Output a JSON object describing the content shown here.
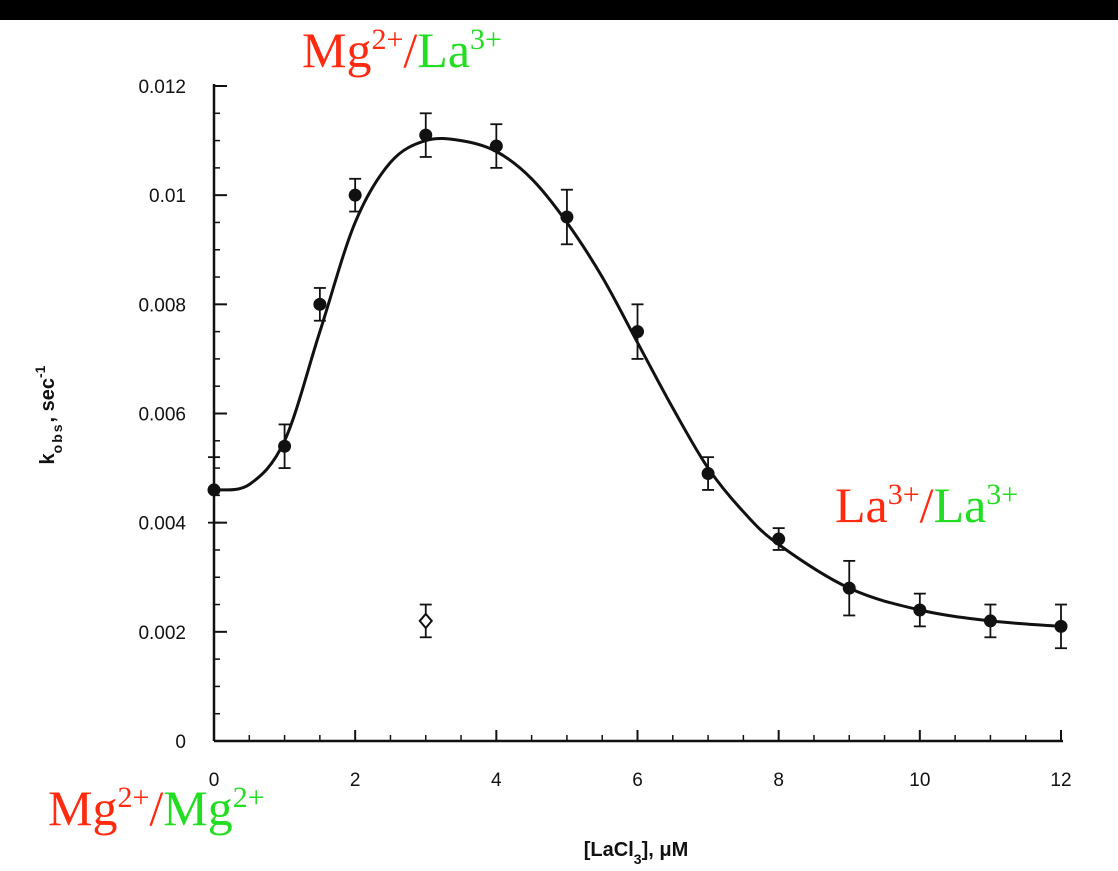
{
  "chart_data": {
    "type": "scatter",
    "title": "",
    "xlabel": "[LaCl",
    "xlabel_sub": "3",
    "xlabel_tail": "], μM",
    "ylabel": "k",
    "ylabel_sub": "obs",
    "ylabel_tail": ", sec",
    "ylabel_sup": "-1",
    "xlim": [
      0,
      12
    ],
    "ylim": [
      0,
      0.012
    ],
    "x_ticks": [
      0,
      2,
      4,
      6,
      8,
      10,
      12
    ],
    "x_tick_labels": [
      "0",
      "2",
      "4",
      "6",
      "8",
      "10",
      "12"
    ],
    "y_ticks": [
      0,
      0.002,
      0.004,
      0.006,
      0.008,
      0.01,
      0.012
    ],
    "y_tick_labels": [
      "0",
      "0.002",
      "0.004",
      "0.006",
      "0.008",
      "0.01",
      "0.012"
    ],
    "grid": false,
    "series": [
      {
        "marker": "filled-circle",
        "x": [
          0,
          1,
          1.5,
          2,
          3,
          4,
          5,
          6,
          7,
          8,
          9,
          10,
          11,
          12
        ],
        "y": [
          0.0046,
          0.0054,
          0.008,
          0.01,
          0.0111,
          0.0109,
          0.0096,
          0.0075,
          0.0049,
          0.0037,
          0.0028,
          0.0024,
          0.0022,
          0.0021
        ],
        "error": [
          0.0006,
          0.0004,
          0.0003,
          0.0003,
          0.0004,
          0.0004,
          0.0005,
          0.0005,
          0.0003,
          0.0002,
          0.0005,
          0.0003,
          0.0003,
          0.0004
        ]
      },
      {
        "marker": "open-diamond",
        "x": [
          3
        ],
        "y": [
          0.0022
        ],
        "error": [
          0.0003
        ]
      }
    ],
    "fit_curve": {
      "x": [
        0,
        0.5,
        1,
        1.5,
        2,
        2.5,
        3,
        3.5,
        4,
        4.5,
        5,
        5.5,
        6,
        6.5,
        7,
        7.5,
        8,
        9,
        10,
        11,
        12
      ],
      "y": [
        0.0046,
        0.0047,
        0.0055,
        0.0075,
        0.0095,
        0.0106,
        0.011,
        0.011,
        0.0108,
        0.0103,
        0.0095,
        0.0085,
        0.0073,
        0.0061,
        0.005,
        0.0042,
        0.0036,
        0.0028,
        0.0024,
        0.0022,
        0.0021
      ]
    },
    "annotations": [
      {
        "id": "top",
        "parts": [
          {
            "text": "Mg",
            "color": "#ff2a10"
          },
          {
            "text": "2+",
            "color": "#ff2a10",
            "sup": true
          },
          {
            "text": "/",
            "color": "#ff2a10"
          },
          {
            "text": "La",
            "color": "#22dd22"
          },
          {
            "text": "3+",
            "color": "#22dd22",
            "sup": true
          }
        ]
      },
      {
        "id": "right",
        "parts": [
          {
            "text": "La",
            "color": "#ff2a10"
          },
          {
            "text": "3+",
            "color": "#ff2a10",
            "sup": true
          },
          {
            "text": "/",
            "color": "#ff2a10"
          },
          {
            "text": "La",
            "color": "#22dd22"
          },
          {
            "text": "3+",
            "color": "#22dd22",
            "sup": true
          }
        ]
      },
      {
        "id": "bottom",
        "parts": [
          {
            "text": "Mg",
            "color": "#ff2a10"
          },
          {
            "text": "2+",
            "color": "#ff2a10",
            "sup": true
          },
          {
            "text": "/",
            "color": "#ff2a10"
          },
          {
            "text": "Mg",
            "color": "#22dd22"
          },
          {
            "text": "2+",
            "color": "#22dd22",
            "sup": true
          }
        ]
      }
    ]
  }
}
